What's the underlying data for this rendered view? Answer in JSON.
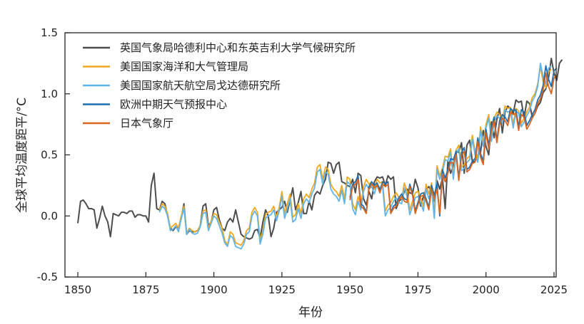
{
  "chart_data": {
    "type": "line",
    "xlabel": "年份",
    "ylabel": "全球平均温度距平/°C",
    "xlim": [
      1842,
      2025
    ],
    "ylim": [
      -0.5,
      1.5
    ],
    "xticks": [
      1850,
      1875,
      1900,
      1925,
      1950,
      1975,
      2000,
      2025
    ],
    "yticks": [
      -0.5,
      0.0,
      0.5,
      1.0,
      1.5
    ],
    "xtick_labels": [
      "1850",
      "1875",
      "1900",
      "1925",
      "1950",
      "1975",
      "2000",
      "2025"
    ],
    "ytick_labels": [
      "-0.5",
      "0.0",
      "0.5",
      "1.0",
      "1.5"
    ],
    "grid": false,
    "legend_position": "top-left",
    "series": [
      {
        "name": "英国气象局哈德利中心和东英吉利大学气候研究所",
        "color": "#4d4d4d",
        "start_year": 1850,
        "values": [
          -0.06,
          0.12,
          0.13,
          0.1,
          0.06,
          0.06,
          0.05,
          -0.1,
          -0.02,
          0.08,
          0.0,
          -0.05,
          -0.17,
          0.02,
          0.01,
          0.0,
          0.03,
          0.03,
          0.02,
          0.04,
          0.04,
          -0.01,
          0.01,
          0.01,
          0.0,
          0.0,
          -0.05,
          0.25,
          0.35,
          0.06,
          0.05,
          0.12,
          0.1,
          0.0,
          -0.1,
          -0.12,
          -0.09,
          -0.1,
          -0.02,
          0.1,
          -0.15,
          -0.12,
          -0.13,
          -0.13,
          -0.12,
          -0.08,
          0.08,
          0.1,
          -0.08,
          -0.05,
          0.05,
          0.07,
          -0.03,
          -0.1,
          -0.12,
          -0.05,
          -0.02,
          -0.05,
          0.05,
          -0.05,
          -0.15,
          -0.17,
          -0.18,
          -0.19,
          -0.18,
          -0.12,
          -0.11,
          -0.18,
          -0.05,
          0.05,
          0.0,
          -0.17,
          -0.1,
          0.03,
          0.05,
          0.07,
          0.12,
          0.03,
          0.13,
          0.23,
          0.05,
          0.11,
          0.2,
          0.02,
          0.02,
          0.12,
          0.05,
          0.17,
          0.2,
          0.18,
          0.25,
          0.3,
          0.44,
          0.43,
          0.35,
          0.42,
          0.44,
          0.28,
          0.27,
          0.25,
          0.24,
          0.3,
          0.19,
          0.35,
          0.33,
          0.14,
          0.09,
          0.2,
          0.14,
          0.28,
          0.32,
          0.31,
          0.32,
          0.25,
          0.33,
          0.3,
          0.32,
          0.06,
          0.12,
          0.14,
          0.2,
          0.22,
          0.19,
          0.18,
          0.3,
          0.23,
          0.08,
          0.16,
          0.22,
          0.24,
          0.19,
          0.12,
          0.29,
          0.22,
          0.31,
          0.06,
          0.45,
          0.35,
          0.41,
          0.53,
          0.52,
          0.6,
          0.35,
          0.58,
          0.62,
          0.44,
          0.45,
          0.5,
          0.52,
          0.7,
          0.57,
          0.5,
          0.77,
          0.64,
          0.79,
          0.88,
          0.68,
          0.85,
          0.9,
          0.88,
          0.84,
          0.95,
          0.93,
          0.94,
          0.8,
          0.94,
          0.92,
          0.81,
          0.84,
          0.9,
          0.93,
          1.01,
          1.04,
          1.13,
          1.29,
          1.17,
          1.11,
          1.25,
          1.28
        ],
        "dash": ""
      },
      {
        "name": "美国国家海洋和大气管理局",
        "color": "#f0a81e",
        "start_year": 1880,
        "values": [
          0.05,
          0.1,
          0.08,
          0.02,
          -0.1,
          -0.08,
          -0.06,
          -0.1,
          0.0,
          0.08,
          -0.14,
          -0.1,
          -0.12,
          -0.13,
          -0.12,
          -0.08,
          0.04,
          0.05,
          -0.1,
          -0.04,
          0.02,
          0.01,
          -0.05,
          -0.1,
          -0.2,
          -0.24,
          -0.13,
          -0.15,
          -0.22,
          -0.23,
          -0.24,
          -0.2,
          -0.12,
          -0.1,
          0.03,
          0.07,
          0.03,
          -0.2,
          -0.12,
          0.01,
          0.03,
          0.04,
          0.08,
          -0.01,
          0.07,
          0.2,
          0.02,
          0.1,
          0.18,
          -0.01,
          0.01,
          0.1,
          0.02,
          0.14,
          0.18,
          0.15,
          0.22,
          0.27,
          0.4,
          0.42,
          0.3,
          0.4,
          0.38,
          0.26,
          0.22,
          0.2,
          0.16,
          0.25,
          0.14,
          0.32,
          0.3,
          0.1,
          0.05,
          0.16,
          0.09,
          0.24,
          0.3,
          0.26,
          0.28,
          0.22,
          0.3,
          0.27,
          0.28,
          0.04,
          0.09,
          0.11,
          0.16,
          0.19,
          0.15,
          0.14,
          0.27,
          0.2,
          0.05,
          0.12,
          0.19,
          0.2,
          0.15,
          0.08,
          0.26,
          0.18,
          0.27,
          0.02,
          0.41,
          0.33,
          0.39,
          0.49,
          0.48,
          0.55,
          0.33,
          0.54,
          0.58,
          0.4,
          0.42,
          0.47,
          0.49,
          0.66,
          0.53,
          0.47,
          0.73,
          0.6,
          0.75,
          0.83,
          0.64,
          0.8,
          0.85,
          0.83,
          0.79,
          0.9,
          0.88,
          0.89,
          0.75,
          0.88,
          0.86,
          0.76,
          0.8,
          0.85,
          0.89,
          0.97,
          1.0,
          1.08,
          1.22,
          1.1,
          1.05,
          1.18,
          1.2
        ],
        "dash": ""
      },
      {
        "name": "美国国家航天航空局戈达德研究所",
        "color": "#62b4e6",
        "start_year": 1880,
        "values": [
          0.03,
          0.08,
          0.06,
          0.0,
          -0.12,
          -0.11,
          -0.08,
          -0.13,
          -0.02,
          0.06,
          -0.15,
          -0.11,
          -0.14,
          -0.15,
          -0.14,
          -0.09,
          0.02,
          0.03,
          -0.12,
          -0.06,
          0.0,
          -0.02,
          -0.08,
          -0.14,
          -0.22,
          -0.25,
          -0.16,
          -0.18,
          -0.25,
          -0.26,
          -0.27,
          -0.23,
          -0.15,
          -0.13,
          0.0,
          0.04,
          0.0,
          -0.23,
          -0.15,
          -0.02,
          0.0,
          0.01,
          0.05,
          -0.04,
          0.04,
          0.16,
          -0.02,
          0.06,
          0.14,
          -0.05,
          -0.03,
          0.06,
          -0.02,
          0.1,
          0.14,
          0.11,
          0.18,
          0.23,
          0.36,
          0.38,
          0.26,
          0.36,
          0.34,
          0.22,
          0.18,
          0.16,
          0.12,
          0.21,
          0.1,
          0.28,
          0.26,
          0.06,
          0.01,
          0.12,
          0.05,
          0.2,
          0.26,
          0.22,
          0.24,
          0.18,
          0.26,
          0.23,
          0.24,
          0.0,
          0.05,
          0.07,
          0.12,
          0.15,
          0.11,
          0.1,
          0.23,
          0.16,
          0.01,
          0.08,
          0.15,
          0.16,
          0.11,
          0.04,
          0.22,
          0.14,
          0.23,
          -0.02,
          0.38,
          0.3,
          0.36,
          0.46,
          0.45,
          0.52,
          0.3,
          0.51,
          0.55,
          0.37,
          0.39,
          0.44,
          0.46,
          0.63,
          0.5,
          0.44,
          0.7,
          0.57,
          0.72,
          0.8,
          0.61,
          0.77,
          0.82,
          0.8,
          0.76,
          0.87,
          0.85,
          0.86,
          0.72,
          0.86,
          0.84,
          0.73,
          0.77,
          0.82,
          0.86,
          0.94,
          0.98,
          1.06,
          1.25,
          1.14,
          1.08,
          1.21,
          1.23
        ],
        "dash": ""
      },
      {
        "name": "欧洲中期天气预报中心",
        "color": "#1f6eb0",
        "start_year": 1950,
        "values": [
          0.15,
          0.26,
          0.28,
          0.33,
          0.1,
          0.08,
          0.03,
          0.24,
          0.28,
          0.25,
          0.27,
          0.21,
          0.28,
          0.26,
          0.28,
          0.03,
          0.08,
          0.1,
          0.15,
          0.18,
          0.14,
          0.13,
          0.26,
          0.19,
          0.04,
          0.11,
          0.18,
          0.19,
          0.14,
          0.07,
          0.25,
          0.17,
          0.26,
          0.0,
          0.38,
          0.31,
          0.38,
          0.47,
          0.46,
          0.53,
          0.31,
          0.52,
          0.56,
          0.38,
          0.4,
          0.45,
          0.47,
          0.64,
          0.51,
          0.45,
          0.71,
          0.58,
          0.73,
          0.81,
          0.62,
          0.78,
          0.83,
          0.81,
          0.77,
          0.88,
          0.86,
          0.87,
          0.73,
          0.87,
          0.85,
          0.74,
          0.78,
          0.83,
          0.87,
          0.95,
          0.99,
          1.07,
          1.23,
          1.12,
          1.06,
          1.19,
          1.21
        ],
        "dash": ""
      },
      {
        "name": "日本气象厅",
        "color": "#d9651e",
        "start_year": 1950,
        "values": [
          0.13,
          0.24,
          0.26,
          0.3,
          0.08,
          0.06,
          0.02,
          0.22,
          0.26,
          0.23,
          0.25,
          0.19,
          0.26,
          0.24,
          0.26,
          0.02,
          0.06,
          0.08,
          0.13,
          0.16,
          0.12,
          0.11,
          0.24,
          0.17,
          0.02,
          0.09,
          0.16,
          0.17,
          0.12,
          0.05,
          0.22,
          0.14,
          0.22,
          0.02,
          0.34,
          0.28,
          0.35,
          0.44,
          0.43,
          0.5,
          0.29,
          0.49,
          0.53,
          0.36,
          0.38,
          0.43,
          0.44,
          0.61,
          0.48,
          0.42,
          0.68,
          0.55,
          0.7,
          0.78,
          0.6,
          0.75,
          0.8,
          0.78,
          0.74,
          0.85,
          0.83,
          0.84,
          0.7,
          0.83,
          0.81,
          0.71,
          0.75,
          0.8,
          0.84,
          0.92,
          0.96,
          1.03,
          1.17,
          1.06,
          1.0,
          1.13,
          1.15
        ],
        "dash": ""
      }
    ]
  }
}
